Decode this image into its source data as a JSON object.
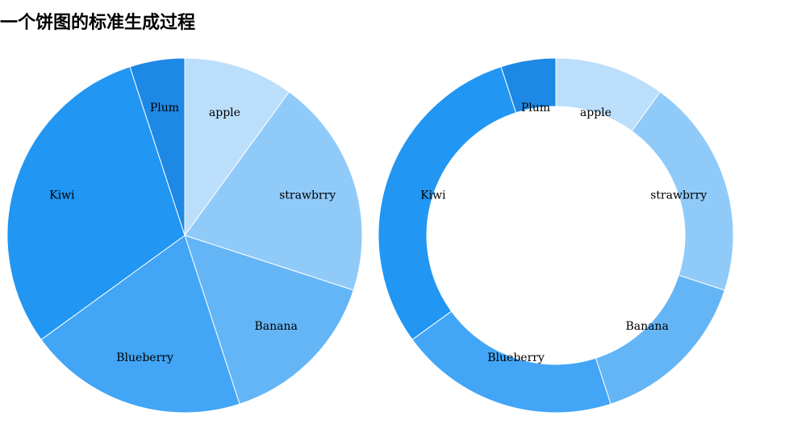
{
  "page": {
    "title": "一个饼图的标准生成过程"
  },
  "chart_data": [
    {
      "type": "pie",
      "categories": [
        "apple",
        "strawbrry",
        "Banana",
        "Blueberry",
        "Kiwi",
        "Plum"
      ],
      "values": [
        10,
        20,
        15,
        20,
        30,
        5
      ],
      "colors": [
        "#bbdefb",
        "#90caf9",
        "#64b5f6",
        "#42a5f5",
        "#2196f3",
        "#1e88e5"
      ],
      "title": ""
    },
    {
      "type": "pie",
      "variant": "donut",
      "categories": [
        "apple",
        "strawbrry",
        "Banana",
        "Blueberry",
        "Kiwi",
        "Plum"
      ],
      "values": [
        10,
        20,
        15,
        20,
        30,
        5
      ],
      "colors": [
        "#bbdefb",
        "#90caf9",
        "#64b5f6",
        "#42a5f5",
        "#2196f3",
        "#1e88e5"
      ],
      "title": ""
    }
  ]
}
